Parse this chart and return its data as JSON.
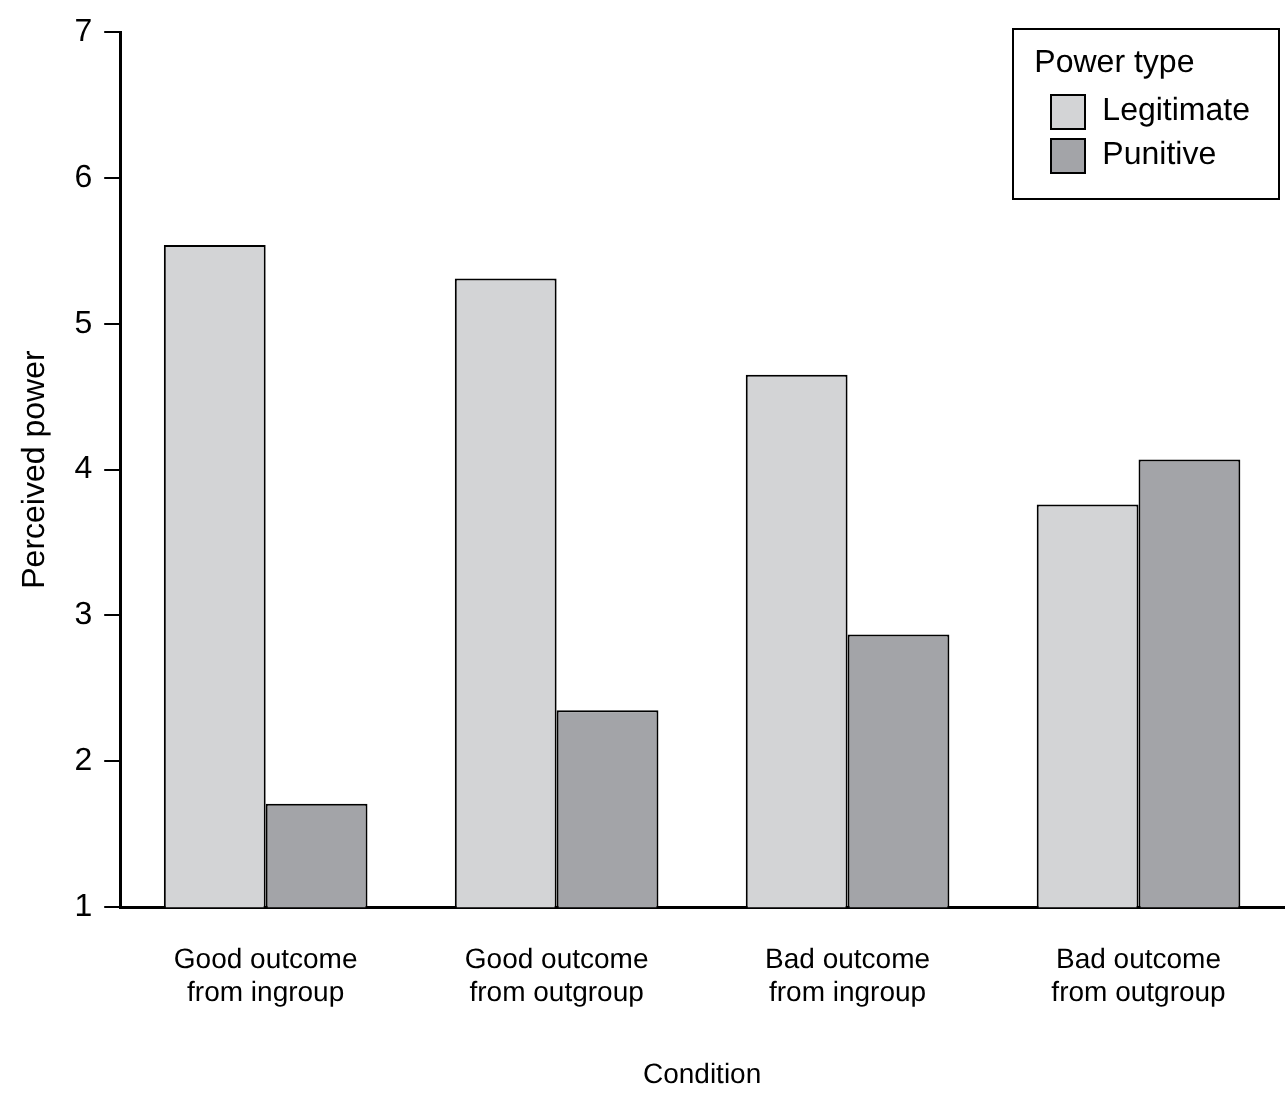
{
  "chart_data": {
    "type": "bar",
    "xlabel": "Condition",
    "ylabel": "Perceived power",
    "legend_title": "Power type",
    "legend": "top right",
    "categories": [
      "Good outcome from ingroup",
      "Good outcome from outgroup",
      "Bad outcome from ingroup",
      "Bad outcome from outgroup"
    ],
    "series": [
      {
        "name": "Legitimate",
        "color": "#d3d4d6",
        "values": [
          5.54,
          5.31,
          4.65,
          3.76
        ]
      },
      {
        "name": "Punitive",
        "color": "#a3a4a8",
        "values": [
          1.71,
          2.35,
          2.87,
          4.07
        ]
      }
    ],
    "ylim": [
      1,
      7
    ],
    "yticks": [
      1,
      2,
      3,
      4,
      5,
      6,
      7
    ]
  }
}
